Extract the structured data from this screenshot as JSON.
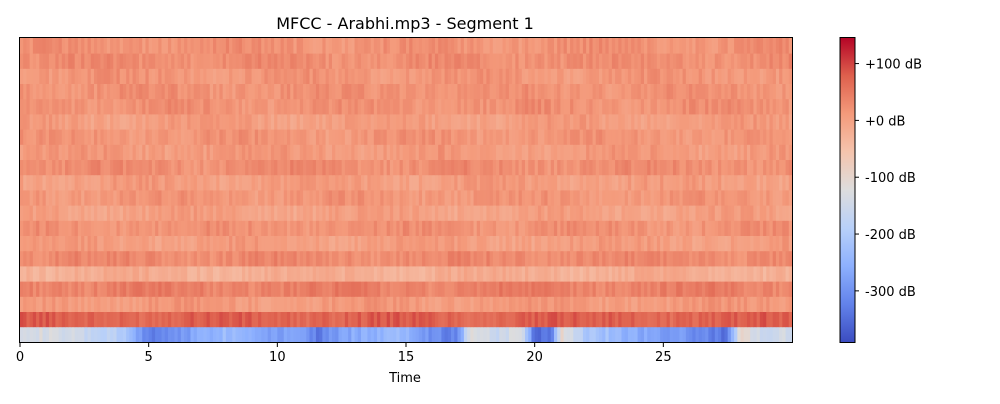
{
  "chart_data": {
    "type": "heatmap",
    "title": "MFCC - Arabhi.mp3 - Segment 1",
    "xlabel": "Time",
    "ylabel": "",
    "xlim": [
      0,
      30
    ],
    "x_ticks": [
      0,
      5,
      10,
      15,
      20,
      25
    ],
    "n_coefficients": 20,
    "colormap": "coolwarm",
    "colorbar": {
      "vmin": -390,
      "vmax": 145,
      "ticks": [
        {
          "value": 100,
          "label": "+100 dB"
        },
        {
          "value": 0,
          "label": "+0 dB"
        },
        {
          "value": -100,
          "label": "-100 dB"
        },
        {
          "value": -200,
          "label": "-200 dB"
        },
        {
          "value": -300,
          "label": "-300 dB"
        }
      ]
    },
    "coefficient_mean_db": [
      -240,
      75,
      10,
      40,
      -20,
      30,
      5,
      20,
      0,
      15,
      5,
      25,
      10,
      15,
      5,
      20,
      20,
      15,
      25,
      20
    ],
    "mfcc0_profile": [
      {
        "t": 0,
        "db": -120
      },
      {
        "t": 2,
        "db": -150
      },
      {
        "t": 4,
        "db": -200
      },
      {
        "t": 5,
        "db": -330
      },
      {
        "t": 6,
        "db": -300
      },
      {
        "t": 7,
        "db": -260
      },
      {
        "t": 8,
        "db": -230
      },
      {
        "t": 9,
        "db": -250
      },
      {
        "t": 10,
        "db": -280
      },
      {
        "t": 11,
        "db": -260
      },
      {
        "t": 11.5,
        "db": -330
      },
      {
        "t": 13,
        "db": -260
      },
      {
        "t": 15,
        "db": -230
      },
      {
        "t": 16,
        "db": -300
      },
      {
        "t": 17,
        "db": -330
      },
      {
        "t": 17.5,
        "db": -100
      },
      {
        "t": 18.5,
        "db": -160
      },
      {
        "t": 19.5,
        "db": -120
      },
      {
        "t": 20,
        "db": -350
      },
      {
        "t": 20.7,
        "db": -330
      },
      {
        "t": 21,
        "db": -100
      },
      {
        "t": 22,
        "db": -200
      },
      {
        "t": 24,
        "db": -260
      },
      {
        "t": 26,
        "db": -300
      },
      {
        "t": 27.5,
        "db": -340
      },
      {
        "t": 28,
        "db": -100
      },
      {
        "t": 29,
        "db": -160
      },
      {
        "t": 30,
        "db": -140
      }
    ]
  }
}
